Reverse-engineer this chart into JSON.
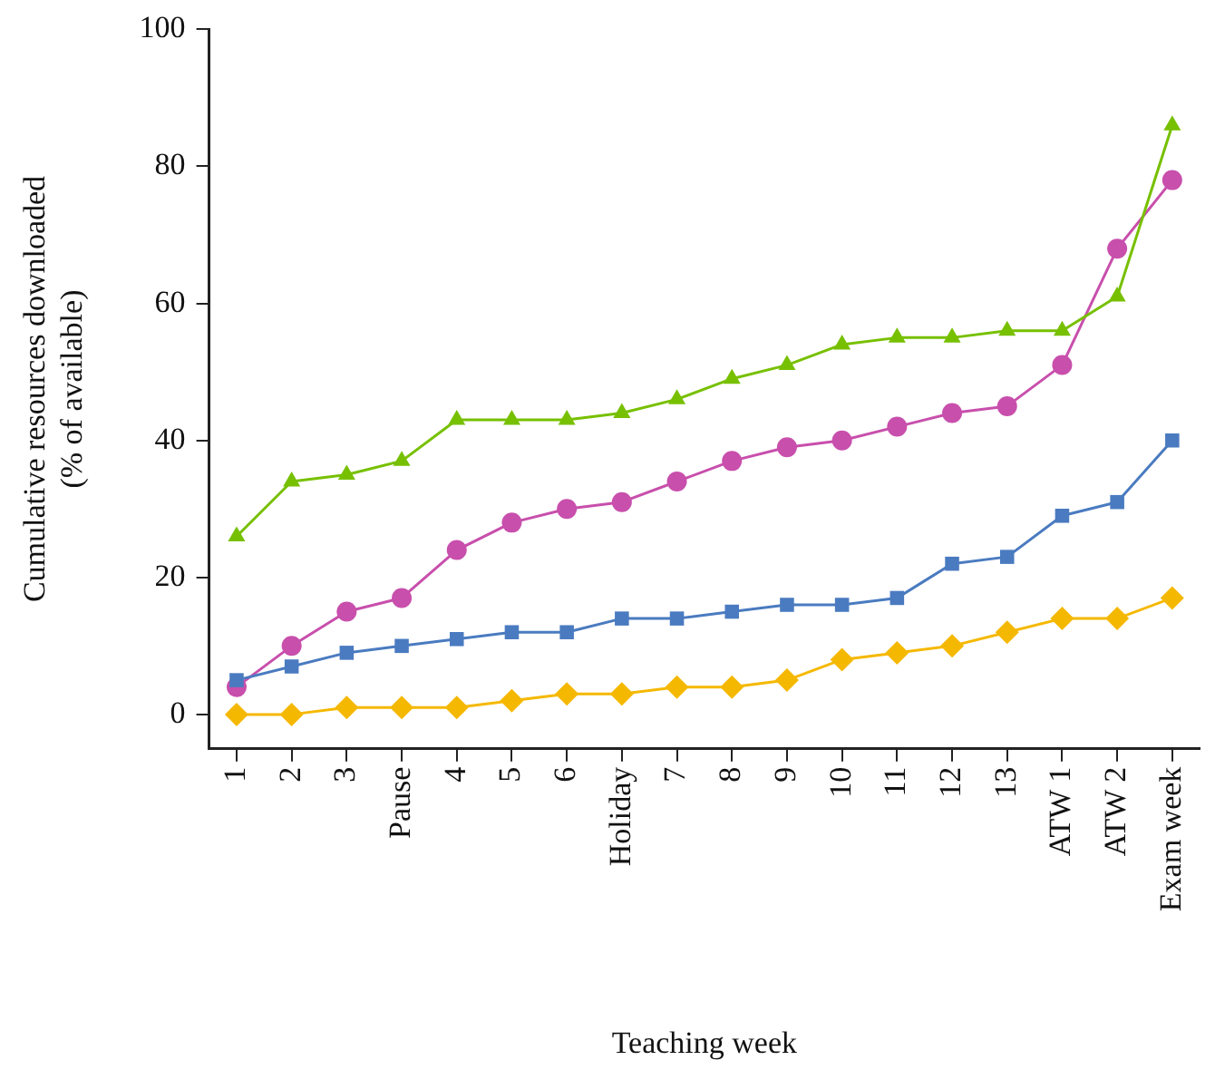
{
  "chart_data": {
    "type": "line",
    "xlabel": "Teaching week",
    "ylabel": "Cumulative resources downloaded\n(% of available)",
    "categories": [
      "1",
      "2",
      "3",
      "Pause",
      "4",
      "5",
      "6",
      "Holiday",
      "7",
      "8",
      "9",
      "10",
      "11",
      "12",
      "13",
      "ATW 1",
      "ATW 2",
      "Exam week"
    ],
    "ylim": [
      -5,
      100
    ],
    "yticks": [
      0,
      20,
      40,
      60,
      80,
      100
    ],
    "grid": false,
    "legend": false,
    "series": [
      {
        "color": "#77c000",
        "marker": "triangle",
        "values": [
          26,
          34,
          35,
          37,
          43,
          43,
          43,
          44,
          46,
          49,
          51,
          54,
          55,
          55,
          56,
          56,
          61,
          86
        ]
      },
      {
        "color": "#4a7bc0",
        "marker": "square",
        "values": [
          5,
          7,
          9,
          10,
          11,
          12,
          12,
          14,
          14,
          15,
          16,
          16,
          17,
          22,
          23,
          29,
          31,
          40
        ]
      },
      {
        "color": "#c84fac",
        "marker": "circle",
        "values": [
          4,
          10,
          15,
          17,
          24,
          28,
          30,
          31,
          34,
          37,
          39,
          40,
          42,
          44,
          45,
          51,
          68,
          78
        ]
      },
      {
        "color": "#f5b800",
        "marker": "diamond",
        "values": [
          0,
          0,
          1,
          1,
          1,
          2,
          3,
          3,
          4,
          4,
          5,
          8,
          9,
          10,
          12,
          14,
          14,
          17
        ]
      }
    ]
  }
}
